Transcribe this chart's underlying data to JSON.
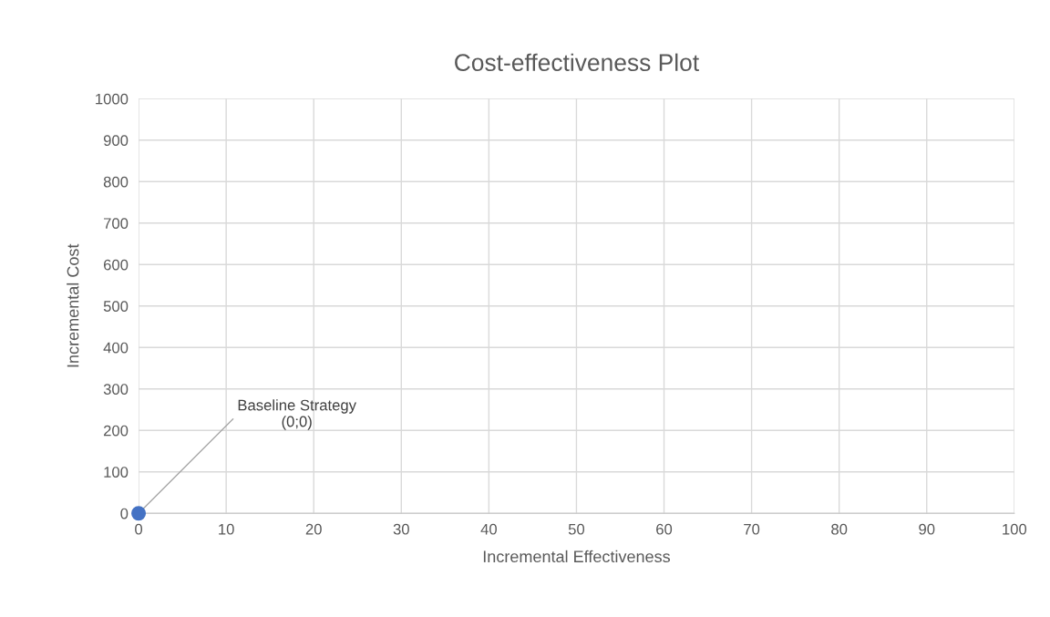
{
  "chart_data": {
    "type": "scatter",
    "title": "Cost-effectiveness Plot",
    "xlabel": "Incremental Effectiveness",
    "ylabel": "Incremental Cost",
    "series": [
      {
        "x": [
          0
        ],
        "values": [
          0
        ],
        "color": "#4472c4"
      }
    ],
    "xlim": [
      0,
      100
    ],
    "xticks": [
      0,
      10,
      20,
      30,
      40,
      50,
      60,
      70,
      80,
      90,
      100
    ],
    "ylim": [
      0,
      1000
    ],
    "yticks": [
      0,
      100,
      200,
      300,
      400,
      500,
      600,
      700,
      800,
      900,
      1000
    ],
    "grid": true,
    "marker": "circle",
    "annotations": [
      {
        "text": "Baseline Strategy\n(0;0)",
        "x": 0,
        "y": 0
      }
    ]
  }
}
